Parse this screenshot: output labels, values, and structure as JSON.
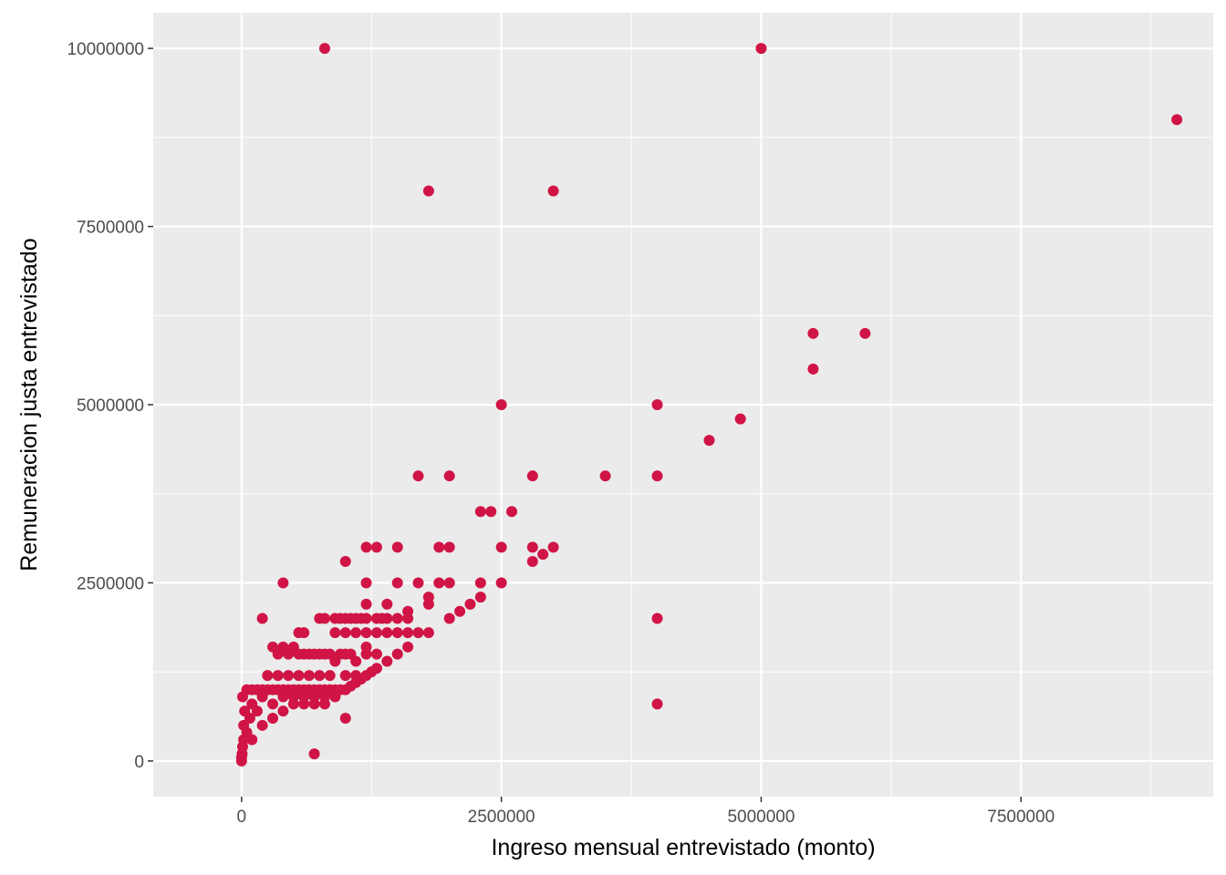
{
  "chart_data": {
    "type": "scatter",
    "title": "",
    "xlabel": "Ingreso mensual entrevistado (monto)",
    "ylabel": "Remuneracion justa entrevistado",
    "xlim": [
      -850000,
      9350000
    ],
    "ylim": [
      -500000,
      10500000
    ],
    "x_ticks": [
      0,
      2500000,
      5000000,
      7500000
    ],
    "x_tick_labels": [
      "0",
      "2500000",
      "5000000",
      "7500000"
    ],
    "y_ticks": [
      0,
      2500000,
      5000000,
      7500000,
      10000000
    ],
    "y_tick_labels": [
      "0",
      "2500000",
      "5000000",
      "7500000",
      "10000000"
    ],
    "grid": true,
    "panel_background": "#ebebeb",
    "grid_color": "#ffffff",
    "point_color": "#d01446",
    "series": [
      {
        "points": [
          [
            800000,
            10000000
          ],
          [
            5000000,
            10000000
          ],
          [
            9000000,
            9000000
          ],
          [
            1800000,
            8000000
          ],
          [
            3000000,
            8000000
          ],
          [
            5500000,
            6000000
          ],
          [
            6000000,
            6000000
          ],
          [
            5500000,
            5500000
          ],
          [
            2500000,
            5000000
          ],
          [
            4000000,
            5000000
          ],
          [
            4800000,
            4800000
          ],
          [
            4500000,
            4500000
          ],
          [
            1700000,
            4000000
          ],
          [
            2000000,
            4000000
          ],
          [
            2800000,
            4000000
          ],
          [
            3500000,
            4000000
          ],
          [
            4000000,
            4000000
          ],
          [
            2300000,
            3500000
          ],
          [
            2400000,
            3500000
          ],
          [
            2600000,
            3500000
          ],
          [
            1200000,
            3000000
          ],
          [
            1300000,
            3000000
          ],
          [
            1500000,
            3000000
          ],
          [
            1900000,
            3000000
          ],
          [
            2000000,
            3000000
          ],
          [
            2500000,
            3000000
          ],
          [
            2800000,
            3000000
          ],
          [
            3000000,
            3000000
          ],
          [
            2900000,
            2900000
          ],
          [
            1000000,
            2800000
          ],
          [
            2800000,
            2800000
          ],
          [
            400000,
            2500000
          ],
          [
            1200000,
            2500000
          ],
          [
            1500000,
            2500000
          ],
          [
            1700000,
            2500000
          ],
          [
            1900000,
            2500000
          ],
          [
            2000000,
            2500000
          ],
          [
            2300000,
            2500000
          ],
          [
            2500000,
            2500000
          ],
          [
            1800000,
            2300000
          ],
          [
            2300000,
            2300000
          ],
          [
            1200000,
            2200000
          ],
          [
            1400000,
            2200000
          ],
          [
            1800000,
            2200000
          ],
          [
            2200000,
            2200000
          ],
          [
            1600000,
            2100000
          ],
          [
            2100000,
            2100000
          ],
          [
            200000,
            2000000
          ],
          [
            4000000,
            2000000
          ],
          [
            2000000,
            2000000
          ],
          [
            800000,
            2000000
          ],
          [
            900000,
            2000000
          ],
          [
            1000000,
            2000000
          ],
          [
            1100000,
            2000000
          ],
          [
            1200000,
            2000000
          ],
          [
            1300000,
            2000000
          ],
          [
            1400000,
            2000000
          ],
          [
            1500000,
            2000000
          ],
          [
            1600000,
            2000000
          ],
          [
            750000,
            2000000
          ],
          [
            950000,
            2000000
          ],
          [
            1050000,
            2000000
          ],
          [
            1150000,
            2000000
          ],
          [
            1350000,
            2000000
          ],
          [
            600000,
            1800000
          ],
          [
            1000000,
            1800000
          ],
          [
            1100000,
            1800000
          ],
          [
            1200000,
            1800000
          ],
          [
            1300000,
            1800000
          ],
          [
            1400000,
            1800000
          ],
          [
            1500000,
            1800000
          ],
          [
            1800000,
            1800000
          ],
          [
            1700000,
            1800000
          ],
          [
            550000,
            1800000
          ],
          [
            900000,
            1800000
          ],
          [
            1600000,
            1800000
          ],
          [
            300000,
            1600000
          ],
          [
            400000,
            1600000
          ],
          [
            500000,
            1600000
          ],
          [
            1200000,
            1600000
          ],
          [
            1600000,
            1600000
          ],
          [
            350000,
            1500000
          ],
          [
            450000,
            1500000
          ],
          [
            550000,
            1500000
          ],
          [
            650000,
            1500000
          ],
          [
            750000,
            1500000
          ],
          [
            850000,
            1500000
          ],
          [
            950000,
            1500000
          ],
          [
            1050000,
            1500000
          ],
          [
            1200000,
            1500000
          ],
          [
            1300000,
            1500000
          ],
          [
            1500000,
            1500000
          ],
          [
            1000000,
            1500000
          ],
          [
            600000,
            1500000
          ],
          [
            700000,
            1500000
          ],
          [
            800000,
            1500000
          ],
          [
            1400000,
            1400000
          ],
          [
            1100000,
            1400000
          ],
          [
            900000,
            1400000
          ],
          [
            1300000,
            1300000
          ],
          [
            1250000,
            1250000
          ],
          [
            1200000,
            1200000
          ],
          [
            250000,
            1200000
          ],
          [
            350000,
            1200000
          ],
          [
            450000,
            1200000
          ],
          [
            550000,
            1200000
          ],
          [
            650000,
            1200000
          ],
          [
            750000,
            1200000
          ],
          [
            850000,
            1200000
          ],
          [
            1000000,
            1200000
          ],
          [
            1100000,
            1200000
          ],
          [
            1150000,
            1150000
          ],
          [
            1100000,
            1100000
          ],
          [
            1000000,
            1000000
          ],
          [
            1050000,
            1050000
          ],
          [
            50000,
            1000000
          ],
          [
            100000,
            1000000
          ],
          [
            150000,
            1000000
          ],
          [
            200000,
            1000000
          ],
          [
            250000,
            1000000
          ],
          [
            300000,
            1000000
          ],
          [
            350000,
            1000000
          ],
          [
            400000,
            1000000
          ],
          [
            450000,
            1000000
          ],
          [
            500000,
            1000000
          ],
          [
            550000,
            1000000
          ],
          [
            600000,
            1000000
          ],
          [
            650000,
            1000000
          ],
          [
            700000,
            1000000
          ],
          [
            750000,
            1000000
          ],
          [
            800000,
            1000000
          ],
          [
            850000,
            1000000
          ],
          [
            900000,
            1000000
          ],
          [
            950000,
            1000000
          ],
          [
            10000,
            900000
          ],
          [
            1000000,
            600000
          ],
          [
            4000000,
            800000
          ],
          [
            700000,
            100000
          ],
          [
            20000,
            500000
          ],
          [
            30000,
            700000
          ],
          [
            20000,
            300000
          ],
          [
            10000,
            200000
          ],
          [
            0,
            50000
          ],
          [
            0,
            0
          ],
          [
            5000,
            100000
          ],
          [
            50000,
            400000
          ],
          [
            80000,
            600000
          ],
          [
            100000,
            800000
          ],
          [
            150000,
            700000
          ],
          [
            200000,
            900000
          ],
          [
            300000,
            800000
          ],
          [
            400000,
            900000
          ],
          [
            500000,
            900000
          ],
          [
            600000,
            900000
          ],
          [
            700000,
            900000
          ],
          [
            800000,
            900000
          ],
          [
            900000,
            900000
          ],
          [
            100000,
            300000
          ],
          [
            200000,
            500000
          ],
          [
            300000,
            600000
          ],
          [
            400000,
            700000
          ],
          [
            500000,
            800000
          ],
          [
            600000,
            800000
          ],
          [
            700000,
            800000
          ],
          [
            800000,
            800000
          ]
        ]
      }
    ]
  }
}
